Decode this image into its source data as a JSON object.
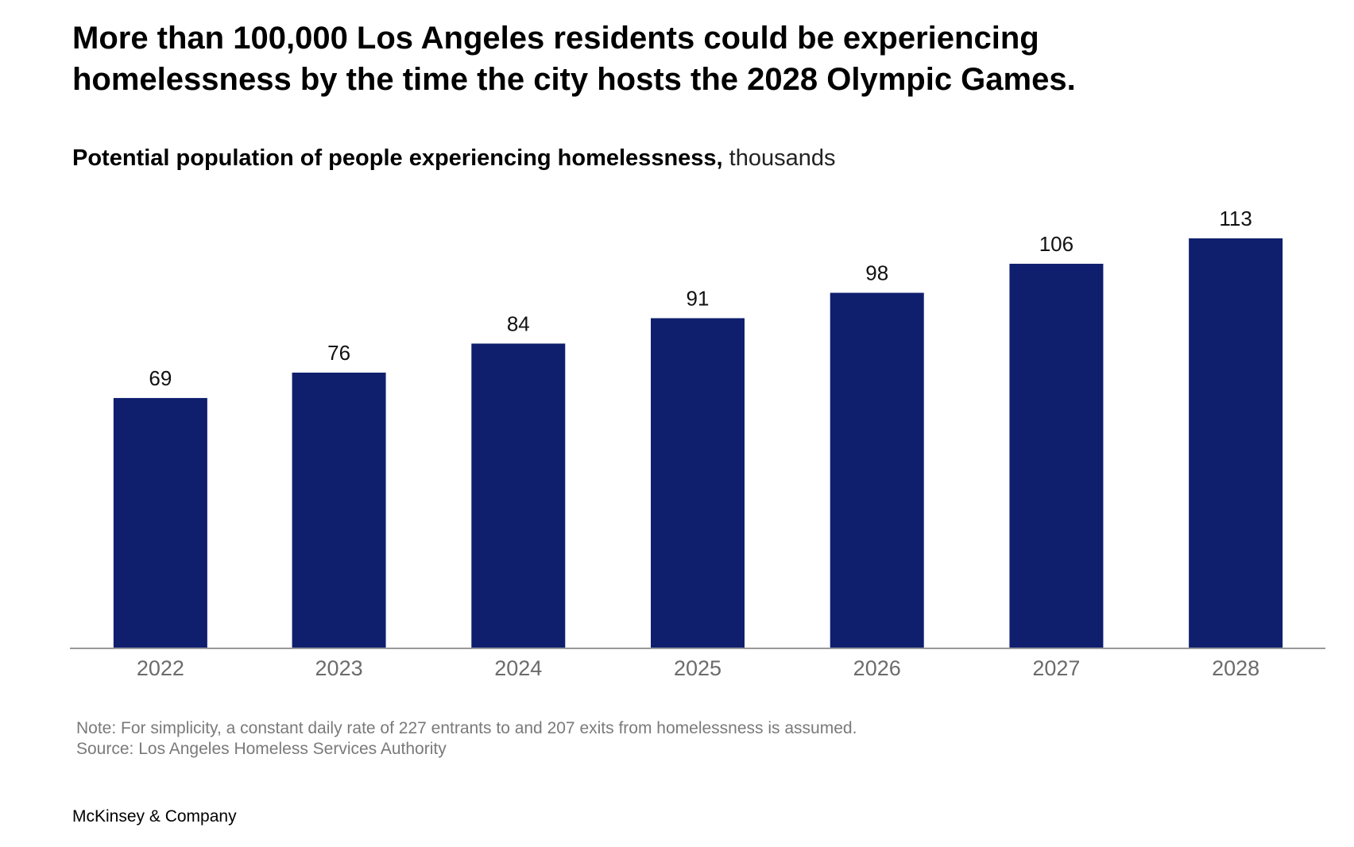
{
  "header": {
    "title_line1": "More than 100,000 Los Angeles residents could be experiencing",
    "title_line2": "homelessness by the time the city hosts the 2028 Olympic Games.",
    "subtitle_main": "Potential population of people experiencing homelessness,",
    "subtitle_unit": " thousands"
  },
  "chart_data": {
    "type": "bar",
    "title": "Potential population of people experiencing homelessness, thousands",
    "categories": [
      "2022",
      "2023",
      "2024",
      "2025",
      "2026",
      "2027",
      "2028"
    ],
    "values": [
      69,
      76,
      84,
      91,
      98,
      106,
      113
    ],
    "ylim": [
      0,
      113
    ],
    "grid": false,
    "bar_color": "#0f1f6e",
    "axis_color": "#999999",
    "tick_label_color": "#6b6b6b"
  },
  "footer": {
    "note": "Note: For simplicity, a constant daily rate of 227 entrants to and 207 exits from homelessness is assumed.",
    "source": "Source: Los Angeles Homeless Services Authority",
    "brand": "McKinsey & Company"
  }
}
